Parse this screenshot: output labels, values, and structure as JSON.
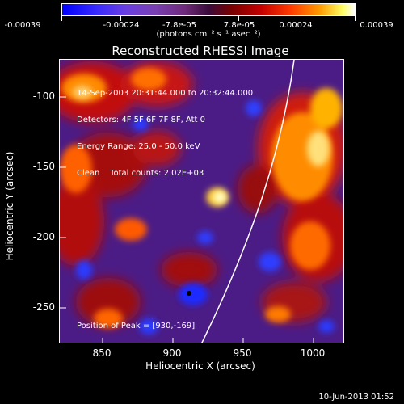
{
  "colorbar": {
    "tick_labels": [
      "-0.00039",
      "-0.00024",
      "-7.8e-05",
      "7.8e-05",
      "0.00024",
      "0.00039"
    ],
    "units_label": "(photons cm⁻² s⁻¹ asec⁻²)"
  },
  "plot": {
    "title": "Reconstructed RHESSI Image",
    "info_lines": [
      "14-Sep-2003 20:31:44.000 to 20:32:44.000",
      "Detectors: 4F 5F 6F 7F 8F, Att 0",
      "Energy Range: 25.0 - 50.0 keV",
      "Clean    Total counts: 2.02E+03"
    ],
    "peak_label": "Position of Peak = [930,-169]",
    "x_axis_label": "Heliocentric X (arcsec)",
    "y_axis_label": "Heliocentric Y (arcsec)",
    "x_ticks": [
      "850",
      "900",
      "950",
      "1000"
    ],
    "y_ticks": [
      "-100",
      "-150",
      "-200",
      "-250"
    ]
  },
  "footer": {
    "timestamp": "10-Jun-2013 01:52"
  },
  "colors": {
    "background": "#000000",
    "text": "#ffffff"
  }
}
